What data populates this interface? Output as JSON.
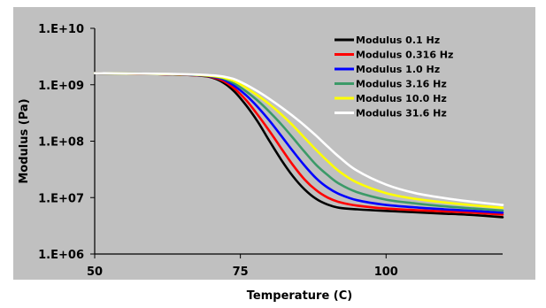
{
  "chart_data": {
    "type": "line",
    "title": "",
    "xlabel": "Temperature (C)",
    "ylabel": "Modulus (Pa)",
    "xlim": [
      50,
      120
    ],
    "ylim": [
      1000000,
      10000000000
    ],
    "yscale": "log",
    "xticks": [
      50,
      75,
      100
    ],
    "xtick_labels": [
      "50",
      "75",
      "100"
    ],
    "yticks": [
      1000000,
      10000000,
      100000000,
      1000000000,
      10000000000
    ],
    "ytick_labels": [
      "1.E+06",
      "1.E+07",
      "1.E+08",
      "1.E+09",
      "1.E+10"
    ],
    "grid": false,
    "legend_position": "top-right",
    "plot_background": "#c0c0c0",
    "series": [
      {
        "name": "Modulus 0.1 Hz",
        "color": "#000000",
        "x": [
          50,
          60,
          65,
          68,
          70,
          72,
          74,
          76,
          78,
          80,
          82,
          84,
          86,
          88,
          90,
          92,
          95,
          100,
          105,
          110,
          115,
          120
        ],
        "y": [
          1600000000,
          1550000000,
          1500000000,
          1450000000,
          1350000000,
          1100000000,
          750000000,
          430000000,
          220000000,
          100000000,
          47000000,
          24000000,
          14000000,
          9500000,
          7500000,
          6600000,
          6200000,
          5800000,
          5500000,
          5200000,
          4900000,
          4500000
        ]
      },
      {
        "name": "Modulus 0.316 Hz",
        "color": "#ff0000",
        "x": [
          50,
          60,
          65,
          68,
          70,
          72,
          74,
          76,
          78,
          80,
          82,
          84,
          86,
          88,
          90,
          92,
          95,
          100,
          105,
          110,
          115,
          120
        ],
        "y": [
          1600000000,
          1550000000,
          1500000000,
          1460000000,
          1380000000,
          1180000000,
          850000000,
          530000000,
          290000000,
          150000000,
          75000000,
          38000000,
          21000000,
          13500000,
          10000000,
          8300000,
          7200000,
          6400000,
          6000000,
          5700000,
          5400000,
          5000000
        ]
      },
      {
        "name": "Modulus 1.0 Hz",
        "color": "#0000ff",
        "x": [
          50,
          60,
          65,
          68,
          70,
          72,
          74,
          76,
          78,
          80,
          82,
          84,
          86,
          88,
          90,
          92,
          95,
          100,
          105,
          110,
          115,
          120
        ],
        "y": [
          1600000000,
          1560000000,
          1510000000,
          1470000000,
          1400000000,
          1250000000,
          950000000,
          650000000,
          400000000,
          230000000,
          125000000,
          67000000,
          37000000,
          22000000,
          15000000,
          11500000,
          9000000,
          7400000,
          6700000,
          6200000,
          5800000,
          5400000
        ]
      },
      {
        "name": "Modulus 3.16 Hz",
        "color": "#3c9a68",
        "x": [
          50,
          60,
          65,
          68,
          70,
          72,
          74,
          76,
          78,
          80,
          82,
          84,
          86,
          88,
          90,
          92,
          95,
          100,
          105,
          110,
          115,
          120
        ],
        "y": [
          1600000000,
          1560000000,
          1520000000,
          1480000000,
          1420000000,
          1300000000,
          1050000000,
          760000000,
          520000000,
          330000000,
          200000000,
          115000000,
          65000000,
          38000000,
          25000000,
          17500000,
          12500000,
          9200000,
          7900000,
          7000000,
          6400000,
          5900000
        ]
      },
      {
        "name": "Modulus 10.0 Hz",
        "color": "#ffff00",
        "x": [
          50,
          60,
          65,
          68,
          70,
          72,
          74,
          76,
          78,
          80,
          82,
          84,
          86,
          88,
          90,
          92,
          95,
          100,
          105,
          110,
          115,
          120
        ],
        "y": [
          1600000000,
          1560000000,
          1530000000,
          1490000000,
          1440000000,
          1340000000,
          1150000000,
          880000000,
          640000000,
          450000000,
          300000000,
          190000000,
          115000000,
          70000000,
          44000000,
          29000000,
          18500000,
          12000000,
          9500000,
          8200000,
          7300000,
          6600000
        ]
      },
      {
        "name": "Modulus 31.6 Hz",
        "color": "#ffffff",
        "x": [
          50,
          60,
          65,
          68,
          70,
          72,
          74,
          76,
          78,
          80,
          82,
          84,
          86,
          88,
          90,
          92,
          95,
          100,
          105,
          110,
          115,
          120
        ],
        "y": [
          1600000000,
          1570000000,
          1540000000,
          1510000000,
          1470000000,
          1400000000,
          1250000000,
          1000000000,
          760000000,
          560000000,
          400000000,
          280000000,
          190000000,
          125000000,
          80000000,
          52000000,
          30000000,
          17000000,
          12000000,
          9800000,
          8400000,
          7400000
        ]
      }
    ]
  }
}
